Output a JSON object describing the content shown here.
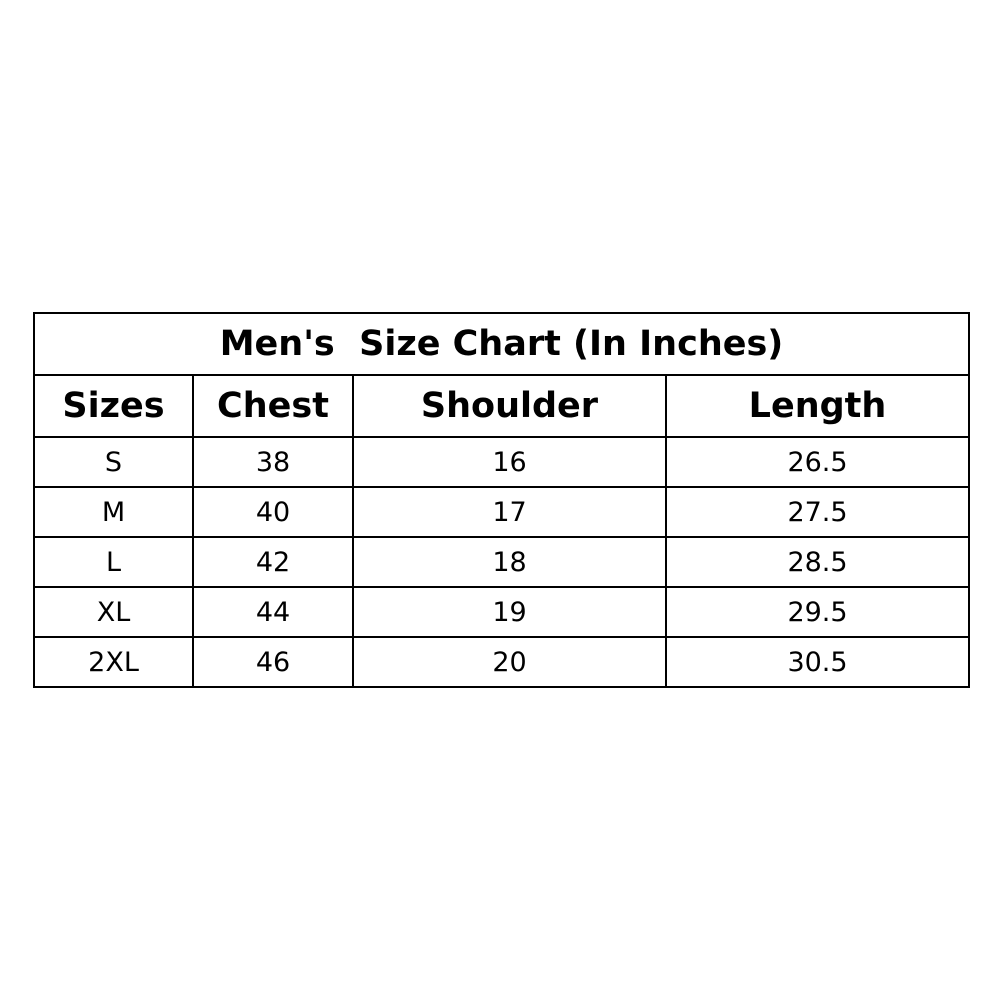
{
  "title": "Men's  Size Chart (In Inches)",
  "columns": [
    "Sizes",
    "Chest",
    "Shoulder",
    "Length"
  ],
  "rows": [
    [
      "S",
      "38",
      "16",
      "26.5"
    ],
    [
      "M",
      "40",
      "17",
      "27.5"
    ],
    [
      "L",
      "42",
      "18",
      "28.5"
    ],
    [
      "XL",
      "44",
      "19",
      "29.5"
    ],
    [
      "2XL",
      "46",
      "20",
      "30.5"
    ]
  ]
}
